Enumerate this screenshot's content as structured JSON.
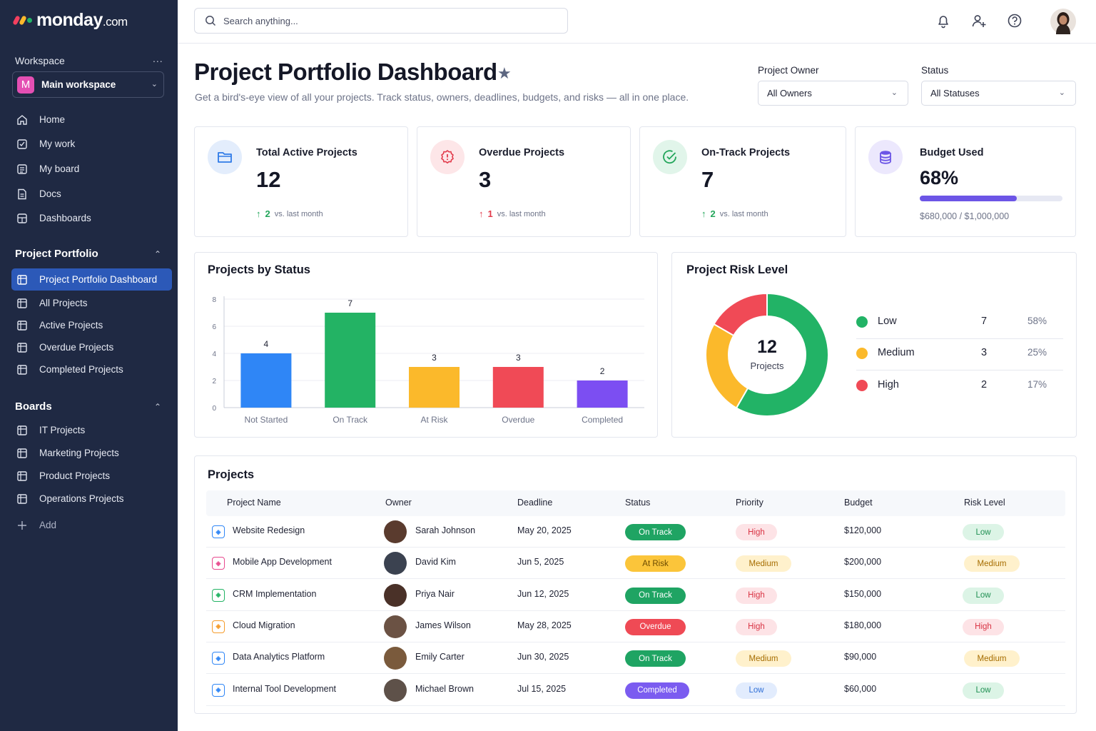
{
  "brand": {
    "name": "monday",
    "suffix": ".com"
  },
  "sidebar": {
    "workspace_label": "Workspace",
    "workspace_more": "...",
    "workspace_badge": "M",
    "workspace_name": "Main workspace",
    "nav": [
      {
        "label": "Home",
        "icon": "home-icon"
      },
      {
        "label": "My work",
        "icon": "check-square-icon"
      },
      {
        "label": "My board",
        "icon": "board-icon"
      },
      {
        "label": "Docs",
        "icon": "doc-icon"
      },
      {
        "label": "Dashboards",
        "icon": "dashboard-icon"
      }
    ],
    "portfolio_title": "Project Portfolio",
    "portfolio_items": [
      {
        "label": "Project Portfolio Dashboard",
        "active": true
      },
      {
        "label": "All Projects"
      },
      {
        "label": "Active Projects"
      },
      {
        "label": "Overdue Projects"
      },
      {
        "label": "Completed Projects"
      }
    ],
    "boards_title": "Boards",
    "boards_items": [
      {
        "label": "IT Projects"
      },
      {
        "label": "Marketing Projects"
      },
      {
        "label": "Product Projects"
      },
      {
        "label": "Operations Projects"
      }
    ],
    "add_label": "Add"
  },
  "search": {
    "placeholder": "Search anything..."
  },
  "header": {
    "title": "Project Portfolio Dashboard",
    "subtitle": "Get a bird's-eye view of all your projects. Track status, owners, deadlines, budgets, and risks — all in one place.",
    "owner_filter_label": "Project Owner",
    "owner_filter_value": "All Owners",
    "status_filter_label": "Status",
    "status_filter_value": "All Statuses"
  },
  "kpis": [
    {
      "title": "Total Active Projects",
      "value": "12",
      "delta": "2",
      "delta_dir": "up",
      "delta_note": "vs. last month",
      "color": "#2f7be8",
      "icon": "folder-icon"
    },
    {
      "title": "Overdue Projects",
      "value": "3",
      "delta": "1",
      "delta_dir": "up",
      "delta_note": "vs. last month",
      "color": "#e23b4b",
      "icon": "alert-icon"
    },
    {
      "title": "On-Track Projects",
      "value": "7",
      "delta": "2",
      "delta_dir": "up",
      "delta_note": "vs. last month",
      "color": "#23a65b",
      "icon": "check-circle-icon"
    },
    {
      "title": "Budget Used",
      "value": "68%",
      "progress": 0.68,
      "amount": "$680,000 / $1,000,000",
      "color": "#6c55e6",
      "icon": "database-icon"
    }
  ],
  "status_chart": {
    "title": "Projects by Status"
  },
  "risk_chart": {
    "title": "Project Risk Level",
    "center_value": "12",
    "center_label": "Projects"
  },
  "chart_data": [
    {
      "type": "bar",
      "title": "Projects by Status",
      "categories": [
        "Not Started",
        "On Track",
        "At Risk",
        "Overdue",
        "Completed"
      ],
      "values": [
        4,
        7,
        3,
        3,
        2
      ],
      "colors": [
        "#2f86f6",
        "#23b364",
        "#fbb92b",
        "#f04a56",
        "#7c4ef2"
      ],
      "yticks": [
        0,
        2,
        4,
        6,
        8
      ],
      "ylim": [
        0,
        8
      ],
      "grid": true
    },
    {
      "type": "pie",
      "title": "Project Risk Level",
      "labels": [
        "Low",
        "Medium",
        "High"
      ],
      "values": [
        7,
        3,
        2
      ],
      "percents": [
        "58%",
        "25%",
        "17%"
      ],
      "colors": [
        "#22b366",
        "#fbb92b",
        "#f04a56"
      ]
    }
  ],
  "projects": {
    "title": "Projects",
    "columns": [
      "Project Name",
      "Owner",
      "Deadline",
      "Status",
      "Priority",
      "Budget",
      "Risk Level"
    ],
    "rows": [
      {
        "name": "Website Redesign",
        "icon_color": "#2f86f6",
        "owner": "Sarah Johnson",
        "avatar": "#5a3b2e",
        "deadline": "May 20, 2025",
        "status": "On Track",
        "priority": "High",
        "budget": "$120,000",
        "risk": "Low"
      },
      {
        "name": "Mobile App Development",
        "icon_color": "#e84a8f",
        "owner": "David Kim",
        "avatar": "#3b4250",
        "deadline": "Jun 5, 2025",
        "status": "At Risk",
        "priority": "Medium",
        "budget": "$200,000",
        "risk": "Medium"
      },
      {
        "name": "CRM Implementation",
        "icon_color": "#23b364",
        "owner": "Priya Nair",
        "avatar": "#4a3128",
        "deadline": "Jun 12, 2025",
        "status": "On Track",
        "priority": "High",
        "budget": "$150,000",
        "risk": "Low"
      },
      {
        "name": "Cloud Migration",
        "icon_color": "#f59c2b",
        "owner": "James Wilson",
        "avatar": "#6b5244",
        "deadline": "May 28, 2025",
        "status": "Overdue",
        "priority": "High",
        "budget": "$180,000",
        "risk": "High"
      },
      {
        "name": "Data Analytics Platform",
        "icon_color": "#2f86f6",
        "owner": "Emily Carter",
        "avatar": "#7a5a3c",
        "deadline": "Jun 30, 2025",
        "status": "On Track",
        "priority": "Medium",
        "budget": "$90,000",
        "risk": "Medium"
      },
      {
        "name": "Internal Tool Development",
        "icon_color": "#2f86f6",
        "owner": "Michael Brown",
        "avatar": "#5e5149",
        "deadline": "Jul 15, 2025",
        "status": "Completed",
        "priority": "Low",
        "budget": "$60,000",
        "risk": "Low"
      }
    ]
  }
}
